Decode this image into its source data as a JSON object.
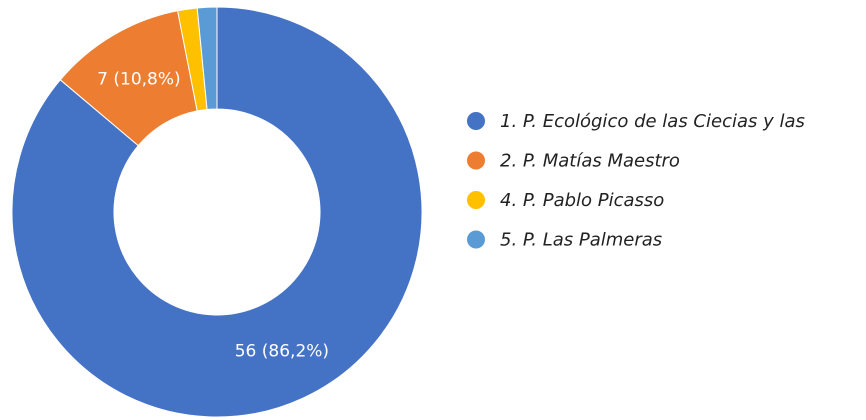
{
  "chart_data": {
    "type": "donut",
    "categories": [
      "1. P. Ecológico de las Ciecias y las",
      "2. P. Matías Maestro",
      "4. P. Pablo Picasso",
      "5. P. Las Palmeras"
    ],
    "values": [
      56,
      7,
      1,
      1
    ],
    "value_labels": [
      "56 (86,2%)",
      "7 (10,8%)",
      null,
      null
    ],
    "colors": [
      "#4472c4",
      "#ed7d31",
      "#ffc000",
      "#5b9bd5"
    ],
    "legend": "right"
  }
}
